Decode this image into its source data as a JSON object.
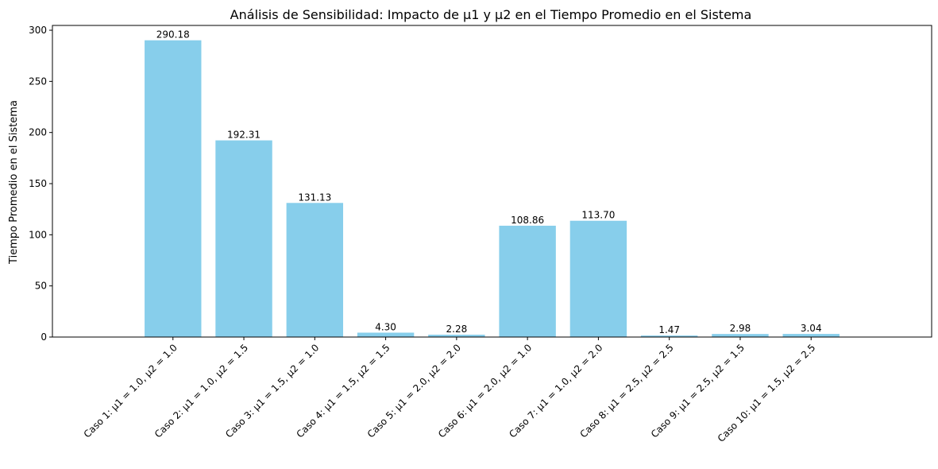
{
  "chart_data": {
    "type": "bar",
    "title": "Análisis de Sensibilidad: Impacto de μ1 y μ2 en el Tiempo Promedio en el Sistema",
    "xlabel": "",
    "ylabel": "Tiempo Promedio en el Sistema",
    "categories": [
      "Caso 1: μ1 = 1.0, μ2 = 1.0",
      "Caso 2: μ1 = 1.0, μ2 = 1.5",
      "Caso 3: μ1 = 1.5, μ2 = 1.0",
      "Caso 4: μ1 = 1.5, μ2 = 1.5",
      "Caso 5: μ1 = 2.0, μ2 = 2.0",
      "Caso 6: μ1 = 2.0, μ2 = 1.0",
      "Caso 7: μ1 = 1.0, μ2 = 2.0",
      "Caso 8: μ1 = 2.5, μ2 = 2.5",
      "Caso 9: μ1 = 2.5, μ2 = 1.5",
      "Caso 10: μ1 = 1.5, μ2 = 2.5"
    ],
    "values": [
      290.18,
      192.31,
      131.13,
      4.3,
      2.28,
      108.86,
      113.7,
      1.47,
      2.98,
      3.04
    ],
    "value_labels": [
      "290.18",
      "192.31",
      "131.13",
      "4.30",
      "2.28",
      "108.86",
      "113.70",
      "1.47",
      "2.98",
      "3.04"
    ],
    "ylim": [
      0,
      304.69
    ],
    "yticks": [
      0,
      50,
      100,
      150,
      200,
      250,
      300
    ],
    "bar_color": "#87ceeb",
    "grid": false,
    "legend": "none"
  }
}
